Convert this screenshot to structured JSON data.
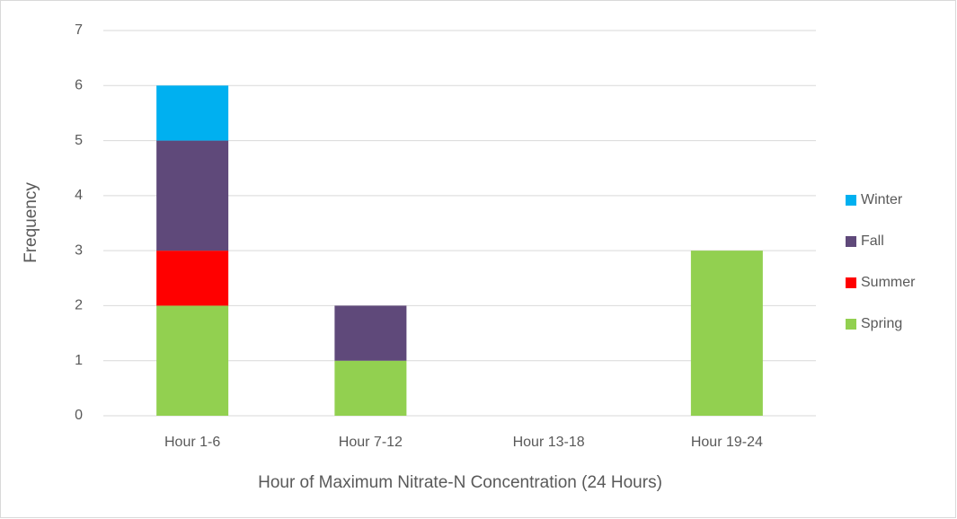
{
  "chart_data": {
    "type": "bar",
    "stacked": true,
    "x_label": "Hour of Maximum Nitrate-N Concentration (24 Hours)",
    "y_label": "Frequency",
    "categories": [
      "Hour 1-6",
      "Hour 7-12",
      "Hour 13-18",
      "Hour 19-24"
    ],
    "series": [
      {
        "name": "Spring",
        "color": "#92d050",
        "values": [
          2,
          1,
          0,
          3
        ]
      },
      {
        "name": "Summer",
        "color": "#ff0000",
        "values": [
          1,
          0,
          0,
          0
        ]
      },
      {
        "name": "Fall",
        "color": "#5f497a",
        "values": [
          2,
          1,
          0,
          0
        ]
      },
      {
        "name": "Winter",
        "color": "#00b0f0",
        "values": [
          1,
          0,
          0,
          0
        ]
      }
    ],
    "ylim": [
      0,
      7
    ],
    "yticks": [
      0,
      1,
      2,
      3,
      4,
      5,
      6,
      7
    ],
    "grid": true,
    "legend": "right"
  }
}
